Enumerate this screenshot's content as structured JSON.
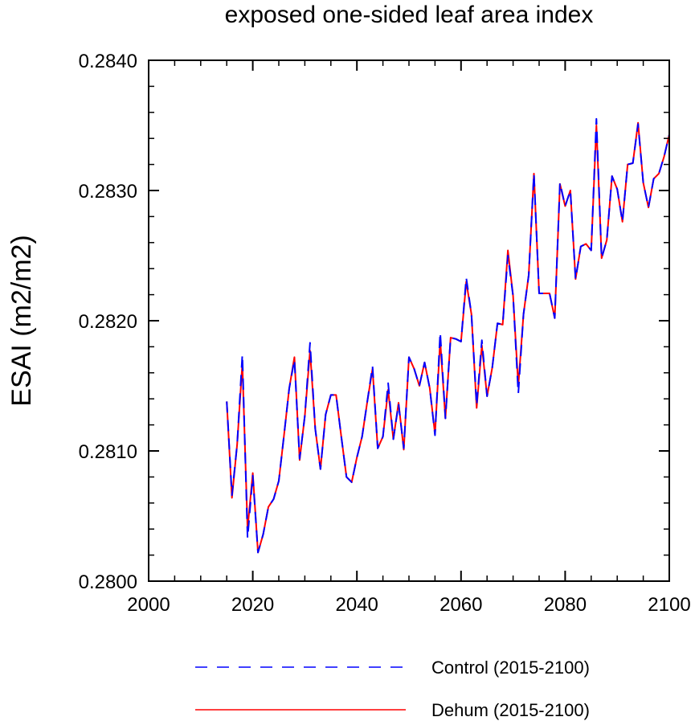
{
  "chart_data": {
    "type": "line",
    "title": "exposed one-sided leaf area index",
    "xlabel": "",
    "ylabel": "ESAI  (m2/m2)",
    "xlim": [
      2000,
      2100
    ],
    "ylim": [
      0.28,
      0.284
    ],
    "x_ticks": [
      "2000",
      "2020",
      "2040",
      "2060",
      "2080",
      "2100"
    ],
    "y_ticks": [
      "0.2800",
      "0.2810",
      "0.2820",
      "0.2830",
      "0.2840"
    ],
    "x": [
      2015,
      2016,
      2017,
      2018,
      2019,
      2020,
      2021,
      2022,
      2023,
      2024,
      2025,
      2026,
      2027,
      2028,
      2029,
      2030,
      2031,
      2032,
      2033,
      2034,
      2035,
      2036,
      2037,
      2038,
      2039,
      2040,
      2041,
      2042,
      2043,
      2044,
      2045,
      2046,
      2047,
      2048,
      2049,
      2050,
      2051,
      2052,
      2053,
      2054,
      2055,
      2056,
      2057,
      2058,
      2059,
      2060,
      2061,
      2062,
      2063,
      2064,
      2065,
      2066,
      2067,
      2068,
      2069,
      2070,
      2071,
      2072,
      2073,
      2074,
      2075,
      2076,
      2077,
      2078,
      2079,
      2080,
      2081,
      2082,
      2083,
      2084,
      2085,
      2086,
      2087,
      2088,
      2089,
      2090,
      2091,
      2092,
      2093,
      2094,
      2095,
      2096,
      2097,
      2098,
      2099,
      2100
    ],
    "series": [
      {
        "name": "Control (2015-2100)",
        "color": "#0000ff",
        "style": "dashed",
        "values": [
          0.28138,
          0.28066,
          0.28105,
          0.28174,
          0.28033,
          0.28081,
          0.28022,
          0.28036,
          0.28057,
          0.28063,
          0.28077,
          0.28112,
          0.28148,
          0.2817,
          0.28094,
          0.28127,
          0.28183,
          0.28117,
          0.28086,
          0.28128,
          0.28143,
          0.28143,
          0.28111,
          0.2808,
          0.28076,
          0.28095,
          0.28111,
          0.28138,
          0.28165,
          0.28102,
          0.28111,
          0.28152,
          0.28109,
          0.28136,
          0.28102,
          0.28172,
          0.28163,
          0.2815,
          0.28168,
          0.28148,
          0.28112,
          0.28191,
          0.28125,
          0.28187,
          0.28186,
          0.28184,
          0.28233,
          0.28205,
          0.28135,
          0.28185,
          0.28142,
          0.28164,
          0.28198,
          0.28197,
          0.2825,
          0.28219,
          0.28144,
          0.28205,
          0.28235,
          0.28313,
          0.28221,
          0.28221,
          0.28221,
          0.28202,
          0.28306,
          0.28288,
          0.283,
          0.28232,
          0.28257,
          0.28259,
          0.28254,
          0.28355,
          0.28248,
          0.28262,
          0.28311,
          0.28301,
          0.28276,
          0.2832,
          0.28321,
          0.28351,
          0.28306,
          0.28287,
          0.28309,
          0.28313,
          0.28326,
          0.28343
        ]
      },
      {
        "name": "Dehum (2015-2100)",
        "color": "#ff0000",
        "style": "solid",
        "values": [
          0.28138,
          0.28064,
          0.28105,
          0.28167,
          0.2804,
          0.28083,
          0.28022,
          0.28036,
          0.28057,
          0.28063,
          0.28077,
          0.28112,
          0.28148,
          0.28172,
          0.28093,
          0.28127,
          0.28177,
          0.28117,
          0.28086,
          0.28128,
          0.28143,
          0.28143,
          0.28111,
          0.2808,
          0.28076,
          0.28095,
          0.28111,
          0.28138,
          0.28163,
          0.28102,
          0.28111,
          0.28147,
          0.28109,
          0.28137,
          0.28101,
          0.28172,
          0.28163,
          0.2815,
          0.28168,
          0.28148,
          0.28113,
          0.28185,
          0.28125,
          0.28187,
          0.28186,
          0.28184,
          0.2823,
          0.28205,
          0.28133,
          0.28181,
          0.28142,
          0.28164,
          0.28198,
          0.28197,
          0.28254,
          0.28219,
          0.2815,
          0.28205,
          0.28235,
          0.28313,
          0.28221,
          0.28221,
          0.28221,
          0.28202,
          0.28305,
          0.28288,
          0.283,
          0.28232,
          0.28257,
          0.28259,
          0.28254,
          0.2835,
          0.28248,
          0.28262,
          0.28311,
          0.28301,
          0.28276,
          0.2832,
          0.28321,
          0.28352,
          0.28306,
          0.28287,
          0.28309,
          0.28313,
          0.28326,
          0.28343
        ]
      }
    ],
    "legend": [
      {
        "label": "Control (2015-2100)",
        "color": "#0000ff",
        "style": "dashed"
      },
      {
        "label": "Dehum (2015-2100)",
        "color": "#ff0000",
        "style": "solid"
      }
    ],
    "legend_position": "bottom-center",
    "grid": false
  }
}
